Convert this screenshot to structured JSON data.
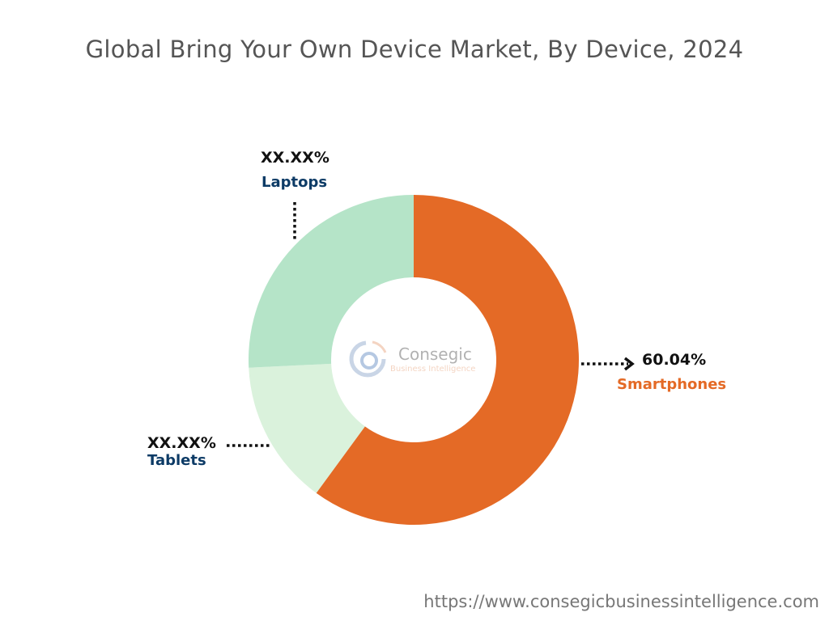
{
  "title": "Global Bring Your Own Device Market, By Device, 2024",
  "url": "https://www.consegicbusinessintelligence.com",
  "logo": {
    "name": "Consegic",
    "tagline": "Business Intelligence"
  },
  "chart_data": {
    "type": "pie",
    "donut": true,
    "title": "Global Bring Your Own Device Market, By Device, 2024",
    "categories": [
      "Smartphones",
      "Tablets",
      "Laptops"
    ],
    "values": [
      60.04,
      14.2,
      25.76
    ],
    "value_labels": [
      "60.04%",
      "XX.XX%",
      "XX.XX%"
    ],
    "colors": [
      "#e46a26",
      "#daf2dc",
      "#b5e4c8"
    ],
    "label_colors": [
      "#e46a26",
      "#0d3b66",
      "#0d3b66"
    ]
  }
}
